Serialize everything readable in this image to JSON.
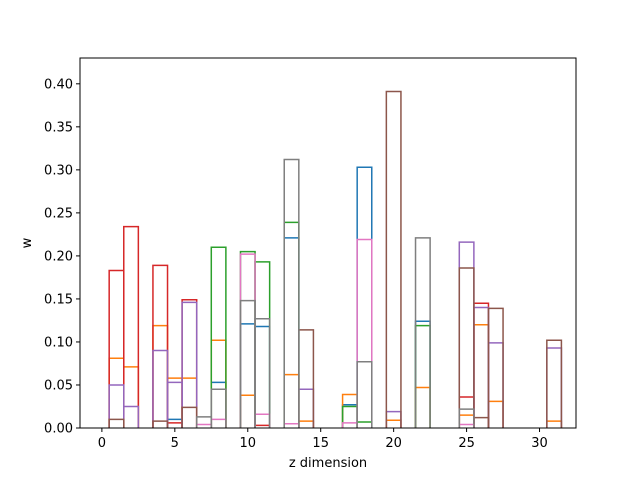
{
  "chart_data": {
    "type": "bar",
    "style": "step-histogram-outline",
    "xlabel": "z dimension",
    "ylabel": "w",
    "xlim": [
      -1.5,
      32.5
    ],
    "ylim": [
      0,
      0.43
    ],
    "xticks": [
      0,
      5,
      10,
      15,
      20,
      25,
      30
    ],
    "yticks": [
      0.0,
      0.05,
      0.1,
      0.15,
      0.2,
      0.25,
      0.3,
      0.35,
      0.4
    ],
    "grid": false,
    "legend": "none",
    "x": [
      0,
      1,
      2,
      3,
      4,
      5,
      6,
      7,
      8,
      9,
      10,
      11,
      12,
      13,
      14,
      15,
      16,
      17,
      18,
      19,
      20,
      21,
      22,
      23,
      24,
      25,
      26,
      27,
      28,
      29,
      30,
      31
    ],
    "series": [
      {
        "color": "#1f77b4",
        "values": [
          0,
          0,
          0,
          0,
          0,
          0.01,
          0,
          0,
          0.053,
          0,
          0.121,
          0.118,
          0,
          0.221,
          0,
          0,
          0,
          0.027,
          0.303,
          0,
          0,
          0,
          0.124,
          0,
          0,
          0,
          0,
          0,
          0,
          0,
          0,
          0
        ]
      },
      {
        "color": "#ff7f0e",
        "values": [
          0,
          0.081,
          0.071,
          0,
          0.119,
          0.058,
          0.058,
          0,
          0.102,
          0,
          0.038,
          0,
          0,
          0.062,
          0.008,
          0,
          0,
          0.039,
          0,
          0,
          0.009,
          0,
          0.047,
          0,
          0,
          0.015,
          0.12,
          0.031,
          0,
          0,
          0,
          0.008
        ]
      },
      {
        "color": "#2ca02c",
        "values": [
          0,
          0,
          0,
          0,
          0,
          0,
          0,
          0,
          0.21,
          0,
          0.205,
          0.193,
          0,
          0.239,
          0,
          0,
          0,
          0.025,
          0.007,
          0,
          0,
          0,
          0.119,
          0,
          0,
          0,
          0,
          0,
          0,
          0,
          0,
          0
        ]
      },
      {
        "color": "#d62728",
        "values": [
          0,
          0.183,
          0.234,
          0,
          0.189,
          0.006,
          0.149,
          0,
          0,
          0,
          0,
          0.003,
          0,
          0,
          0,
          0,
          0,
          0,
          0,
          0,
          0,
          0,
          0,
          0,
          0,
          0.036,
          0.145,
          0,
          0,
          0,
          0,
          0
        ]
      },
      {
        "color": "#9467bd",
        "values": [
          0,
          0.05,
          0.025,
          0,
          0.09,
          0.053,
          0.146,
          0,
          0,
          0,
          0,
          0,
          0,
          0,
          0.045,
          0,
          0,
          0,
          0,
          0,
          0.019,
          0,
          0,
          0,
          0,
          0.216,
          0.14,
          0.099,
          0,
          0,
          0,
          0.093
        ]
      },
      {
        "color": "#8c564b",
        "values": [
          0,
          0.01,
          0,
          0,
          0.008,
          0,
          0.024,
          0,
          0,
          0,
          0,
          0,
          0,
          0,
          0.114,
          0,
          0,
          0,
          0,
          0,
          0.391,
          0,
          0,
          0,
          0,
          0.186,
          0.012,
          0.139,
          0,
          0,
          0,
          0.102
        ]
      },
      {
        "color": "#e377c2",
        "values": [
          0,
          0,
          0,
          0,
          0,
          0,
          0,
          0.004,
          0.01,
          0,
          0.202,
          0.016,
          0,
          0.005,
          0,
          0,
          0,
          0.006,
          0.219,
          0,
          0,
          0,
          0,
          0,
          0,
          0.004,
          0,
          0,
          0,
          0,
          0,
          0
        ]
      },
      {
        "color": "#7f7f7f",
        "values": [
          0,
          0,
          0,
          0,
          0,
          0,
          0,
          0.013,
          0.045,
          0,
          0.148,
          0.127,
          0,
          0.312,
          0,
          0,
          0,
          0,
          0.077,
          0,
          0,
          0,
          0.221,
          0,
          0,
          0.022,
          0,
          0,
          0,
          0,
          0,
          0
        ]
      }
    ]
  }
}
